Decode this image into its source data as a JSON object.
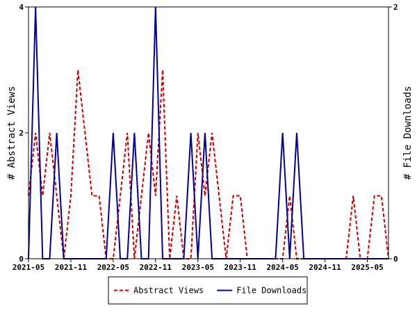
{
  "chart_data": {
    "type": "line",
    "ylabel": "# Abstract Views",
    "y2label": "# File Downloads",
    "ylim": [
      0,
      4
    ],
    "y2lim": [
      0,
      2
    ],
    "yticks": [
      0,
      2,
      4
    ],
    "y2ticks": [
      0,
      2
    ],
    "xlim": [
      "2021-05",
      "2025-08"
    ],
    "xticks": [
      "2021-05",
      "2021-11",
      "2022-05",
      "2022-11",
      "2023-05",
      "2023-11",
      "2024-05",
      "2024-11",
      "2025-05"
    ],
    "grid": false,
    "legend_position": "bottom",
    "series": [
      {
        "name": "Abstract Views",
        "axis": "left",
        "color": "#cc0000",
        "dash": "dashed",
        "x": [
          "2021-05",
          "2021-06",
          "2021-07",
          "2021-08",
          "2021-09",
          "2021-10",
          "2021-11",
          "2021-12",
          "2022-01",
          "2022-02",
          "2022-03",
          "2022-04",
          "2022-05",
          "2022-06",
          "2022-07",
          "2022-08",
          "2022-09",
          "2022-10",
          "2022-11",
          "2022-12",
          "2023-01",
          "2023-02",
          "2023-03",
          "2023-04",
          "2023-05",
          "2023-06",
          "2023-07",
          "2023-08",
          "2023-09",
          "2023-10",
          "2023-11",
          "2023-12",
          "2024-01",
          "2024-02",
          "2024-03",
          "2024-04",
          "2024-05",
          "2024-06",
          "2024-07",
          "2024-08",
          "2024-09",
          "2024-10",
          "2024-11",
          "2024-12",
          "2025-01",
          "2025-02",
          "2025-03",
          "2025-04",
          "2025-05",
          "2025-06",
          "2025-07",
          "2025-08"
        ],
        "values": [
          1,
          2,
          1,
          2,
          1,
          0,
          1,
          3,
          2,
          1,
          1,
          0,
          0,
          1,
          2,
          0,
          1,
          2,
          1,
          3,
          0,
          1,
          0,
          0,
          2,
          1,
          2,
          1,
          0,
          1,
          1,
          0,
          0,
          0,
          0,
          0,
          0,
          1,
          0,
          0,
          0,
          0,
          0,
          0,
          0,
          0,
          1,
          0,
          0,
          1,
          1,
          0
        ]
      },
      {
        "name": "File Downloads",
        "axis": "right",
        "color": "#000099",
        "dash": "solid",
        "x": [
          "2021-05",
          "2021-06",
          "2021-07",
          "2021-08",
          "2021-09",
          "2021-10",
          "2021-11",
          "2021-12",
          "2022-01",
          "2022-02",
          "2022-03",
          "2022-04",
          "2022-05",
          "2022-06",
          "2022-07",
          "2022-08",
          "2022-09",
          "2022-10",
          "2022-11",
          "2022-12",
          "2023-01",
          "2023-02",
          "2023-03",
          "2023-04",
          "2023-05",
          "2023-06",
          "2023-07",
          "2023-08",
          "2023-09",
          "2023-10",
          "2023-11",
          "2023-12",
          "2024-01",
          "2024-02",
          "2024-03",
          "2024-04",
          "2024-05",
          "2024-06",
          "2024-07",
          "2024-08",
          "2024-09",
          "2024-10",
          "2024-11",
          "2024-12",
          "2025-01",
          "2025-02",
          "2025-03",
          "2025-04",
          "2025-05",
          "2025-06",
          "2025-07",
          "2025-08"
        ],
        "values": [
          0,
          2,
          0,
          0,
          1,
          0,
          0,
          0,
          0,
          0,
          0,
          0,
          1,
          0,
          0,
          1,
          0,
          0,
          2,
          0,
          0,
          0,
          0,
          1,
          0,
          1,
          0,
          0,
          0,
          0,
          0,
          0,
          0,
          0,
          0,
          0,
          1,
          0,
          1,
          0,
          0,
          0,
          0,
          0,
          0,
          0,
          0,
          0,
          0,
          0,
          0,
          0
        ]
      }
    ]
  }
}
